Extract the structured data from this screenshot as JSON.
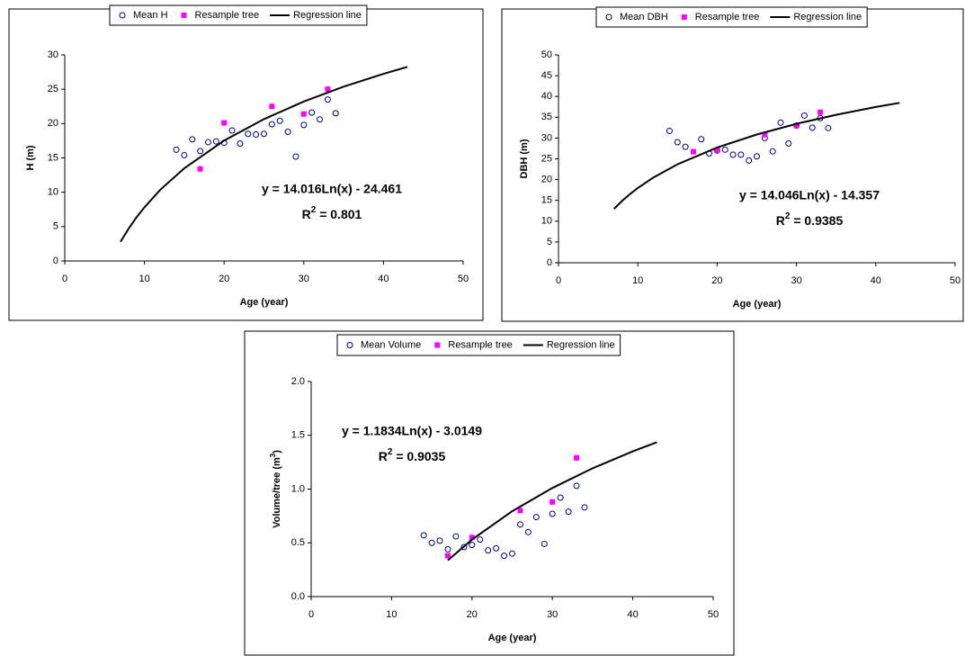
{
  "chart_data": [
    {
      "type": "scatter",
      "x_label": "Age (year)",
      "y_label": {
        "text": "H (m)"
      },
      "xlim": [
        0,
        50
      ],
      "xticks": [
        0,
        10,
        20,
        30,
        40,
        50
      ],
      "ylim": [
        0,
        30
      ],
      "yticks": [
        0,
        5,
        10,
        15,
        20,
        25,
        30
      ],
      "equation": "y = 14.016Ln(x) - 24.461",
      "r_squared": {
        "base": "R",
        "sup": "2",
        "text": " = 0.801"
      },
      "series": [
        {
          "name": "Mean H",
          "marker": "open-circle",
          "color": "#000080",
          "x": [
            14,
            15,
            16,
            17,
            18,
            19,
            20,
            21,
            22,
            23,
            24,
            25,
            26,
            27,
            28,
            29,
            30,
            31,
            32,
            33,
            34
          ],
          "values": [
            16.2,
            15.4,
            17.7,
            16,
            17.3,
            17.4,
            17.2,
            19,
            17.1,
            18.5,
            18.4,
            18.5,
            19.9,
            20.4,
            18.8,
            15.2,
            19.8,
            21.6,
            20.6,
            23.5,
            21.5
          ]
        },
        {
          "name": "Resample tree",
          "marker": "square",
          "color": "#ff00ff",
          "x": [
            17,
            20,
            26,
            30,
            33
          ],
          "values": [
            13.4,
            20.1,
            22.5,
            21.4,
            25
          ]
        },
        {
          "name": "Regression line",
          "marker": "line",
          "color": "#000000",
          "x": [
            7,
            8,
            9,
            10,
            12,
            15,
            20,
            25,
            30,
            35,
            40,
            43
          ],
          "values": [
            2.81,
            4.68,
            6.34,
            7.81,
            10.37,
            13.49,
            17.53,
            20.65,
            23.21,
            25.37,
            27.24,
            28.26
          ]
        }
      ]
    },
    {
      "type": "scatter",
      "x_label": "Age (year)",
      "y_label": {
        "text": "DBH (m)"
      },
      "xlim": [
        0,
        50
      ],
      "xticks": [
        0,
        10,
        20,
        30,
        40,
        50
      ],
      "ylim": [
        0,
        50
      ],
      "yticks": [
        0,
        5,
        10,
        15,
        20,
        25,
        30,
        35,
        40,
        45,
        50
      ],
      "equation": "y = 14.046Ln(x) - 14.357",
      "r_squared": {
        "base": "R",
        "sup": "2",
        "text": " = 0.9385"
      },
      "series": [
        {
          "name": "Mean DBH",
          "marker": "open-circle",
          "color": "#000080",
          "x": [
            14,
            15,
            16,
            18,
            19,
            20,
            21,
            22,
            23,
            24,
            25,
            26,
            27,
            28,
            29,
            30,
            31,
            32,
            33,
            34
          ],
          "values": [
            31.7,
            29,
            27.9,
            29.7,
            26.3,
            27,
            27.2,
            26,
            26,
            24.6,
            25.6,
            30,
            26.8,
            33.7,
            28.7,
            33,
            35.4,
            32.5,
            34.8,
            32.4
          ]
        },
        {
          "name": "Resample tree",
          "marker": "square",
          "color": "#ff00ff",
          "x": [
            17,
            20,
            26,
            30,
            33
          ],
          "values": [
            26.7,
            27.1,
            30.8,
            33,
            36.2
          ]
        },
        {
          "name": "Regression line",
          "marker": "line",
          "color": "#000000",
          "x": [
            7,
            8,
            9,
            10,
            12,
            15,
            20,
            25,
            30,
            35,
            40,
            43
          ],
          "values": [
            12.97,
            14.85,
            16.5,
            17.99,
            20.55,
            23.68,
            27.72,
            30.85,
            33.42,
            35.58,
            37.46,
            38.47
          ]
        }
      ]
    },
    {
      "type": "scatter",
      "x_label": "Age (year)",
      "y_label": {
        "text": "Volume/tree (m",
        "sup": "3",
        "tail": ")"
      },
      "xlim": [
        0,
        50
      ],
      "xticks": [
        0,
        10,
        20,
        30,
        40,
        50
      ],
      "ylim": [
        0,
        2
      ],
      "yticks": [
        {
          "value": 0,
          "label": "0.0"
        },
        {
          "value": 0.5,
          "label": "0.5"
        },
        {
          "value": 1,
          "label": "1.0"
        },
        {
          "value": 1.5,
          "label": "1.5"
        },
        {
          "value": 2,
          "label": "2.0"
        }
      ],
      "equation": "y = 1.1834Ln(x) - 3.0149",
      "r_squared": {
        "base": "R",
        "sup": "2",
        "text": " = 0.9035"
      },
      "series": [
        {
          "name": "Mean Volume",
          "marker": "open-circle",
          "color": "#000080",
          "x": [
            14,
            15,
            16,
            17,
            18,
            19,
            20,
            21,
            22,
            23,
            24,
            25,
            26,
            27,
            28,
            29,
            30,
            31,
            32,
            33,
            34
          ],
          "values": [
            0.57,
            0.5,
            0.52,
            0.44,
            0.56,
            0.46,
            0.48,
            0.53,
            0.43,
            0.45,
            0.38,
            0.4,
            0.67,
            0.6,
            0.74,
            0.49,
            0.77,
            0.92,
            0.79,
            1.03,
            0.83
          ]
        },
        {
          "name": "Resample tree",
          "marker": "square",
          "color": "#ff00ff",
          "x": [
            17,
            20,
            26,
            30,
            33
          ],
          "values": [
            0.38,
            0.55,
            0.8,
            0.88,
            1.29
          ]
        },
        {
          "name": "Regression line",
          "marker": "line",
          "color": "#000000",
          "x": [
            17,
            20,
            25,
            30,
            35,
            40,
            43
          ],
          "values": [
            0.338,
            0.53,
            0.794,
            1.01,
            1.193,
            1.351,
            1.436
          ]
        }
      ]
    }
  ]
}
